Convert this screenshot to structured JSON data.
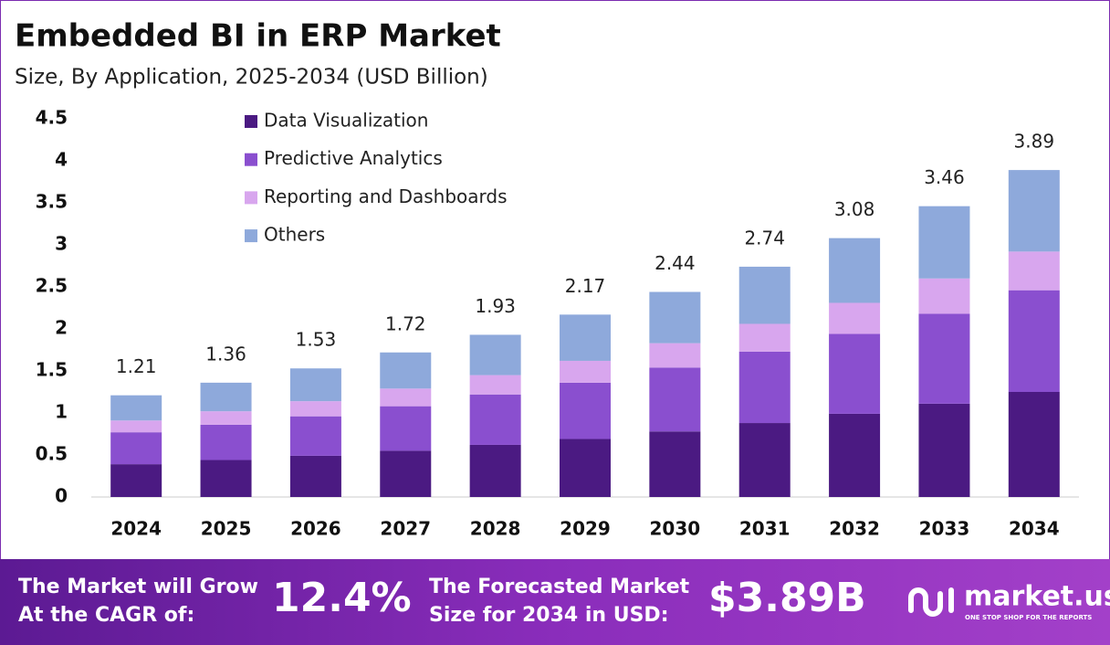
{
  "chart_data": {
    "type": "stacked-bar",
    "title": "Embedded BI in ERP Market",
    "subtitle": "Size, By Application, 2025-2034 (USD Billion)",
    "categories": [
      "2024",
      "2025",
      "2026",
      "2027",
      "2028",
      "2029",
      "2030",
      "2031",
      "2032",
      "2033",
      "2034"
    ],
    "series": [
      {
        "name": "Data Visualization",
        "color": "#4b1a82",
        "values": [
          0.39,
          0.44,
          0.49,
          0.55,
          0.62,
          0.69,
          0.78,
          0.88,
          0.99,
          1.11,
          1.25
        ]
      },
      {
        "name": "Predictive Analytics",
        "color": "#8a4fcf",
        "values": [
          0.38,
          0.42,
          0.47,
          0.53,
          0.6,
          0.67,
          0.76,
          0.85,
          0.95,
          1.07,
          1.21
        ]
      },
      {
        "name": "Reporting and Dashboards",
        "color": "#d8a6ee",
        "values": [
          0.14,
          0.16,
          0.18,
          0.21,
          0.23,
          0.26,
          0.29,
          0.33,
          0.37,
          0.42,
          0.46
        ]
      },
      {
        "name": "Others",
        "color": "#8ea9db",
        "values": [
          0.3,
          0.34,
          0.39,
          0.43,
          0.48,
          0.55,
          0.61,
          0.68,
          0.77,
          0.86,
          0.97
        ]
      }
    ],
    "totals": [
      1.21,
      1.36,
      1.53,
      1.72,
      1.93,
      2.17,
      2.44,
      2.74,
      3.08,
      3.46,
      3.89
    ],
    "ylim": [
      0,
      4.5
    ],
    "yticks": [
      0,
      0.5,
      1,
      1.5,
      2,
      2.5,
      3,
      3.5,
      4,
      4.5
    ],
    "grid": false
  },
  "footer": {
    "cagr_text": [
      "The Market will Grow",
      "At the CAGR of:"
    ],
    "cagr_value": "12.4%",
    "forecast_text": [
      "The Forecasted Market",
      "Size for 2034 in USD:"
    ],
    "forecast_value": "$3.89B",
    "brand": "market.us",
    "tagline": "ONE STOP SHOP FOR THE REPORTS"
  }
}
